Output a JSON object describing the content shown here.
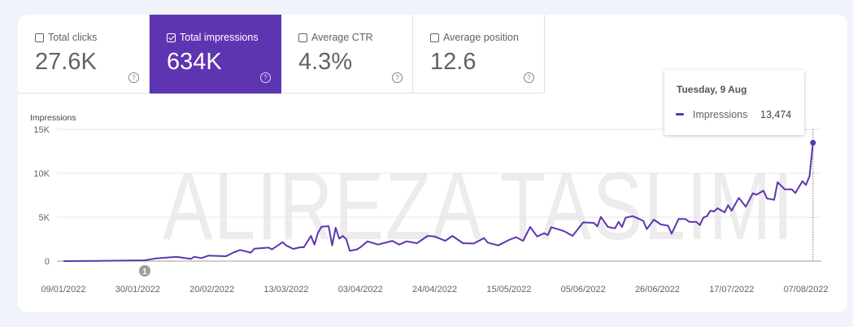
{
  "tiles": [
    {
      "label": "Total clicks",
      "value": "27.6K",
      "checked": false
    },
    {
      "label": "Total impressions",
      "value": "634K",
      "checked": true
    },
    {
      "label": "Average CTR",
      "value": "4.3%",
      "checked": false
    },
    {
      "label": "Average position",
      "value": "12.6",
      "checked": false
    }
  ],
  "help_glyph": "?",
  "watermark": "ALIREZA TASLIMI",
  "tooltip": {
    "date": "Tuesday, 9 Aug",
    "series": "Impressions",
    "value": "13,474"
  },
  "colors": {
    "accent": "#5e35b1"
  },
  "chart_data": {
    "type": "line",
    "ylabel": "Impressions",
    "ylim": [
      0,
      15000
    ],
    "yticks": [
      {
        "v": 0,
        "label": "0"
      },
      {
        "v": 5000,
        "label": "5K"
      },
      {
        "v": 10000,
        "label": "10K"
      },
      {
        "v": 15000,
        "label": "15K"
      }
    ],
    "xlim_days": [
      0,
      212
    ],
    "xticks": [
      {
        "d": 0,
        "label": "09/01/2022"
      },
      {
        "d": 21,
        "label": "30/01/2022"
      },
      {
        "d": 42,
        "label": "20/02/2022"
      },
      {
        "d": 63,
        "label": "13/03/2022"
      },
      {
        "d": 84,
        "label": "03/04/2022"
      },
      {
        "d": 105,
        "label": "24/04/2022"
      },
      {
        "d": 126,
        "label": "15/05/2022"
      },
      {
        "d": 147,
        "label": "05/06/2022"
      },
      {
        "d": 168,
        "label": "26/06/2022"
      },
      {
        "d": 189,
        "label": "17/07/2022"
      },
      {
        "d": 210,
        "label": "07/08/2022"
      }
    ],
    "annotation": {
      "d": 23,
      "label": "1"
    },
    "grid": true,
    "series": [
      {
        "name": "Impressions",
        "points": [
          [
            0,
            0
          ],
          [
            10,
            30
          ],
          [
            23,
            90
          ],
          [
            26,
            300
          ],
          [
            32,
            490
          ],
          [
            36,
            250
          ],
          [
            37,
            490
          ],
          [
            39,
            340
          ],
          [
            41,
            620
          ],
          [
            46,
            560
          ],
          [
            48,
            960
          ],
          [
            50,
            1270
          ],
          [
            53,
            960
          ],
          [
            54,
            1420
          ],
          [
            58,
            1540
          ],
          [
            59,
            1330
          ],
          [
            62,
            2160
          ],
          [
            63,
            1790
          ],
          [
            65,
            1390
          ],
          [
            67,
            1570
          ],
          [
            68,
            1570
          ],
          [
            70,
            2870
          ],
          [
            71,
            1880
          ],
          [
            72,
            3240
          ],
          [
            73,
            3920
          ],
          [
            75,
            3980
          ],
          [
            76,
            1790
          ],
          [
            77,
            3800
          ],
          [
            78,
            2560
          ],
          [
            79,
            2870
          ],
          [
            80,
            2500
          ],
          [
            81,
            1170
          ],
          [
            83,
            1330
          ],
          [
            84,
            1570
          ],
          [
            86,
            2250
          ],
          [
            89,
            1880
          ],
          [
            93,
            2310
          ],
          [
            95,
            1880
          ],
          [
            97,
            2250
          ],
          [
            100,
            2040
          ],
          [
            103,
            2870
          ],
          [
            105,
            2810
          ],
          [
            108,
            2310
          ],
          [
            110,
            2870
          ],
          [
            113,
            2040
          ],
          [
            116,
            2000
          ],
          [
            119,
            2620
          ],
          [
            120,
            2100
          ],
          [
            123,
            1790
          ],
          [
            126,
            2410
          ],
          [
            128,
            2720
          ],
          [
            130,
            2310
          ],
          [
            132,
            3890
          ],
          [
            134,
            2810
          ],
          [
            136,
            3180
          ],
          [
            137,
            2960
          ],
          [
            138,
            3860
          ],
          [
            141,
            3490
          ],
          [
            142,
            3330
          ],
          [
            144,
            2870
          ],
          [
            147,
            4410
          ],
          [
            150,
            4350
          ],
          [
            151,
            3950
          ],
          [
            152,
            5030
          ],
          [
            154,
            3890
          ],
          [
            156,
            3730
          ],
          [
            157,
            4470
          ],
          [
            158,
            3890
          ],
          [
            159,
            4940
          ],
          [
            161,
            5120
          ],
          [
            163,
            4780
          ],
          [
            164,
            4570
          ],
          [
            165,
            3640
          ],
          [
            167,
            4720
          ],
          [
            169,
            4170
          ],
          [
            171,
            4040
          ],
          [
            172,
            3120
          ],
          [
            174,
            4810
          ],
          [
            176,
            4780
          ],
          [
            177,
            4470
          ],
          [
            179,
            4470
          ],
          [
            180,
            4100
          ],
          [
            181,
            4940
          ],
          [
            182,
            5120
          ],
          [
            183,
            5740
          ],
          [
            184,
            5650
          ],
          [
            185,
            6020
          ],
          [
            187,
            5550
          ],
          [
            188,
            6360
          ],
          [
            189,
            5740
          ],
          [
            191,
            7190
          ],
          [
            193,
            6200
          ],
          [
            195,
            7720
          ],
          [
            196,
            7560
          ],
          [
            198,
            8020
          ],
          [
            199,
            7130
          ],
          [
            201,
            6970
          ],
          [
            202,
            8980
          ],
          [
            204,
            8180
          ],
          [
            206,
            8180
          ],
          [
            207,
            7750
          ],
          [
            209,
            9100
          ],
          [
            210,
            8670
          ],
          [
            211,
            9660
          ],
          [
            212,
            13474
          ]
        ]
      }
    ]
  }
}
